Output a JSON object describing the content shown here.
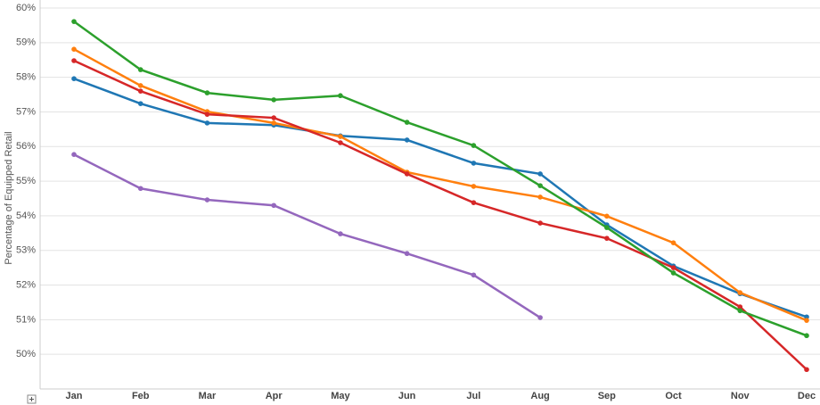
{
  "chart_data": {
    "type": "line",
    "y_label": "Percentage of Equipped Retail",
    "categories": [
      "Jan",
      "Feb",
      "Mar",
      "Apr",
      "May",
      "Jun",
      "Jul",
      "Aug",
      "Sep",
      "Oct",
      "Nov",
      "Dec"
    ],
    "ylim": [
      49,
      60
    ],
    "yticks": [
      {
        "value": 50,
        "label": "50%"
      },
      {
        "value": 51,
        "label": "51%"
      },
      {
        "value": 52,
        "label": "52%"
      },
      {
        "value": 53,
        "label": "53%"
      },
      {
        "value": 54,
        "label": "54%"
      },
      {
        "value": 55,
        "label": "55%"
      },
      {
        "value": 56,
        "label": "56%"
      },
      {
        "value": 57,
        "label": "57%"
      },
      {
        "value": 58,
        "label": "58%"
      },
      {
        "value": 59,
        "label": "59%"
      },
      {
        "value": 60,
        "label": "60%"
      }
    ],
    "grid": true,
    "series": [
      {
        "color": "#9467bd",
        "values": [
          55.77,
          54.79,
          54.46,
          54.3,
          53.48,
          52.91,
          52.29,
          51.06,
          null,
          null,
          null,
          null
        ]
      },
      {
        "color": "#1f77b4",
        "values": [
          57.96,
          57.24,
          56.68,
          56.62,
          56.31,
          56.19,
          55.52,
          55.21,
          53.74,
          52.55,
          51.75,
          51.08
        ]
      },
      {
        "color": "#ff7f0e",
        "values": [
          58.81,
          57.76,
          57.01,
          56.68,
          56.29,
          55.26,
          54.85,
          54.54,
          53.99,
          53.22,
          51.78,
          50.98
        ]
      },
      {
        "color": "#d62728",
        "values": [
          58.48,
          57.6,
          56.93,
          56.83,
          56.11,
          55.21,
          54.38,
          53.79,
          53.35,
          52.5,
          51.37,
          49.56
        ]
      },
      {
        "color": "#2ca02c",
        "values": [
          59.61,
          58.22,
          57.55,
          57.35,
          57.47,
          56.7,
          56.03,
          54.87,
          53.66,
          52.35,
          51.26,
          50.54
        ]
      }
    ]
  }
}
